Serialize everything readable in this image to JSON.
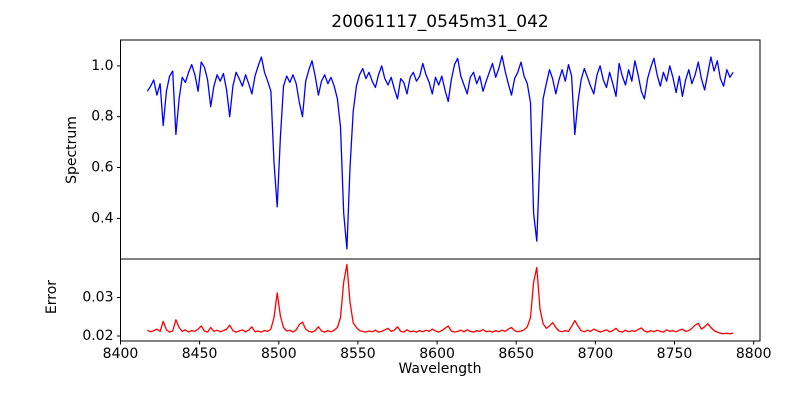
{
  "figure": {
    "title": "20061117_0545m31_042",
    "background": "#ffffff",
    "spine_color": "#000000"
  },
  "chart_data": [
    {
      "type": "line",
      "panel": "top",
      "title": "20061117_0545m31_042",
      "xlabel": "",
      "ylabel": "Spectrum",
      "color": "#0000ff",
      "grid": false,
      "legend": null,
      "xlim": [
        8400,
        8804
      ],
      "ylim": [
        0.24,
        1.102
      ],
      "yticks": [
        1.0,
        0.8,
        0.6,
        0.4
      ],
      "ytick_labels": [
        "1.0",
        "0.8",
        "0.6",
        "0.4"
      ],
      "x_start": 8417,
      "x_step": 2,
      "values": [
        0.9,
        0.92,
        0.945,
        0.885,
        0.93,
        0.765,
        0.9,
        0.96,
        0.98,
        0.73,
        0.87,
        0.955,
        0.935,
        0.975,
        1.005,
        0.965,
        0.9,
        1.015,
        0.995,
        0.945,
        0.84,
        0.92,
        0.965,
        0.94,
        0.97,
        0.905,
        0.8,
        0.92,
        0.975,
        0.95,
        0.92,
        0.965,
        0.93,
        0.89,
        0.96,
        1.0,
        1.035,
        0.975,
        0.94,
        0.9,
        0.62,
        0.445,
        0.72,
        0.92,
        0.96,
        0.935,
        0.965,
        0.93,
        0.855,
        0.8,
        0.94,
        0.985,
        1.02,
        0.96,
        0.885,
        0.94,
        0.965,
        0.93,
        0.955,
        0.92,
        0.87,
        0.76,
        0.42,
        0.28,
        0.6,
        0.82,
        0.92,
        0.965,
        0.99,
        0.95,
        0.975,
        0.94,
        0.915,
        0.965,
        1.0,
        0.95,
        0.925,
        0.955,
        0.91,
        0.87,
        0.95,
        0.935,
        0.89,
        0.955,
        0.975,
        0.94,
        0.96,
        1.01,
        0.965,
        0.935,
        0.89,
        0.955,
        0.925,
        0.96,
        0.905,
        0.86,
        0.945,
        1.005,
        1.03,
        0.96,
        0.925,
        0.89,
        0.955,
        0.975,
        0.93,
        0.96,
        0.9,
        0.94,
        0.975,
        1.01,
        0.955,
        0.99,
        1.04,
        0.98,
        0.93,
        0.885,
        0.95,
        0.975,
        1.015,
        0.96,
        0.93,
        0.855,
        0.42,
        0.31,
        0.65,
        0.87,
        0.93,
        0.985,
        0.95,
        0.89,
        0.945,
        0.985,
        0.94,
        1.005,
        0.96,
        0.73,
        0.86,
        0.945,
        0.99,
        0.955,
        0.92,
        0.89,
        0.965,
        1.0,
        0.945,
        0.915,
        0.975,
        0.93,
        0.88,
        1.01,
        0.96,
        0.925,
        0.985,
        0.94,
        1.02,
        0.965,
        0.9,
        0.87,
        0.95,
        0.995,
        1.03,
        0.965,
        0.92,
        0.975,
        0.94,
        1.0,
        0.955,
        0.895,
        0.96,
        0.88,
        0.945,
        0.985,
        0.93,
        0.965,
        1.015,
        0.95,
        0.905,
        0.97,
        1.035,
        0.98,
        1.02,
        0.95,
        0.92,
        0.985,
        0.955,
        0.975
      ]
    },
    {
      "type": "line",
      "panel": "bottom",
      "title": "",
      "xlabel": "Wavelength",
      "ylabel": "Error",
      "color": "#ff0000",
      "grid": false,
      "legend": null,
      "xlim": [
        8400,
        8804
      ],
      "ylim": [
        0.0187,
        0.04
      ],
      "yticks": [
        0.03,
        0.02
      ],
      "ytick_labels": [
        "0.03",
        "0.02"
      ],
      "xticks": [
        8400,
        8450,
        8500,
        8550,
        8600,
        8650,
        8700,
        8750,
        8800
      ],
      "xtick_labels": [
        "8400",
        "8450",
        "8500",
        "8550",
        "8600",
        "8650",
        "8700",
        "8750",
        "8800"
      ],
      "x_start": 8417,
      "x_step": 2,
      "values": [
        0.0215,
        0.0211,
        0.0214,
        0.0218,
        0.0212,
        0.0238,
        0.0216,
        0.021,
        0.0213,
        0.0242,
        0.0222,
        0.0212,
        0.0216,
        0.021,
        0.0214,
        0.0212,
        0.0218,
        0.0226,
        0.0213,
        0.021,
        0.0222,
        0.0212,
        0.0215,
        0.0211,
        0.0214,
        0.0218,
        0.0228,
        0.0214,
        0.021,
        0.0213,
        0.0216,
        0.0211,
        0.0215,
        0.0224,
        0.0211,
        0.0213,
        0.021,
        0.0214,
        0.0212,
        0.0218,
        0.0248,
        0.0312,
        0.0252,
        0.0222,
        0.0213,
        0.0215,
        0.021,
        0.0216,
        0.023,
        0.0236,
        0.0218,
        0.0212,
        0.021,
        0.0214,
        0.0224,
        0.0213,
        0.021,
        0.0214,
        0.0211,
        0.0215,
        0.0222,
        0.0248,
        0.034,
        0.0386,
        0.0288,
        0.0234,
        0.0222,
        0.0214,
        0.0212,
        0.021,
        0.0213,
        0.0211,
        0.0215,
        0.021,
        0.0212,
        0.0216,
        0.022,
        0.0212,
        0.0215,
        0.0224,
        0.0212,
        0.021,
        0.0216,
        0.0211,
        0.0213,
        0.021,
        0.0214,
        0.0211,
        0.0215,
        0.0212,
        0.0218,
        0.0213,
        0.021,
        0.0214,
        0.022,
        0.0226,
        0.0213,
        0.021,
        0.0212,
        0.0215,
        0.0211,
        0.0216,
        0.0212,
        0.021,
        0.0214,
        0.0212,
        0.0217,
        0.0211,
        0.0213,
        0.021,
        0.0214,
        0.0211,
        0.0215,
        0.0212,
        0.0218,
        0.0222,
        0.0214,
        0.0211,
        0.0213,
        0.0216,
        0.0224,
        0.0248,
        0.034,
        0.0378,
        0.027,
        0.0232,
        0.022,
        0.0226,
        0.0235,
        0.0222,
        0.0213,
        0.0211,
        0.0214,
        0.0212,
        0.0225,
        0.024,
        0.0226,
        0.0214,
        0.0211,
        0.0215,
        0.0212,
        0.0218,
        0.0214,
        0.021,
        0.0213,
        0.0216,
        0.0211,
        0.0214,
        0.022,
        0.0212,
        0.021,
        0.0215,
        0.0211,
        0.0214,
        0.0212,
        0.0217,
        0.0221,
        0.0213,
        0.021,
        0.0214,
        0.0211,
        0.0215,
        0.0212,
        0.021,
        0.0216,
        0.0212,
        0.0214,
        0.0211,
        0.0215,
        0.0218,
        0.0212,
        0.0214,
        0.022,
        0.0228,
        0.0233,
        0.0218,
        0.0224,
        0.0232,
        0.0222,
        0.0214,
        0.021,
        0.0207,
        0.0206,
        0.0207,
        0.0206,
        0.0207
      ]
    }
  ]
}
